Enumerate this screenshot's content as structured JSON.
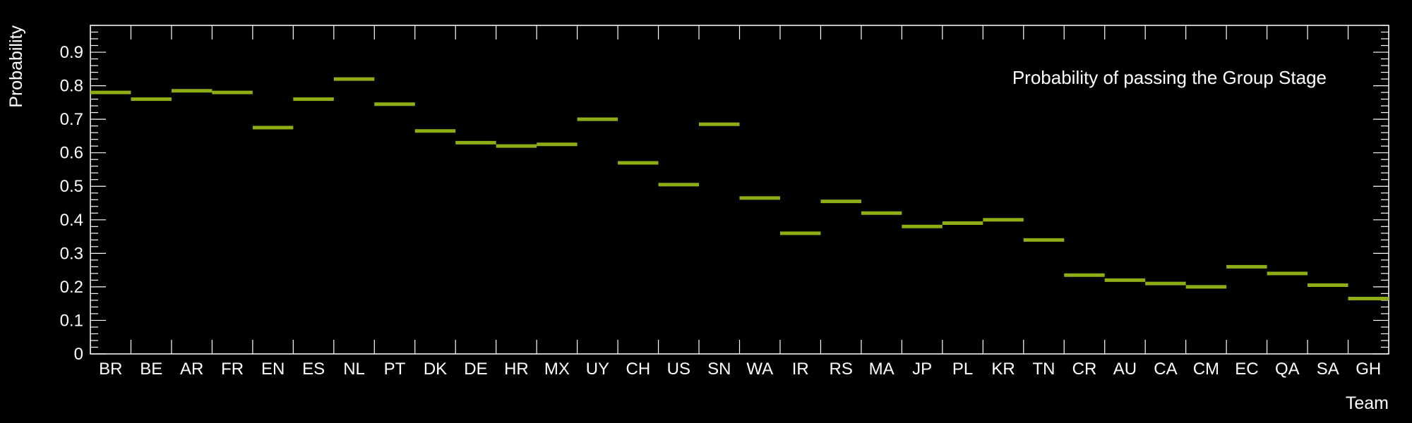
{
  "chart_data": {
    "type": "bar",
    "title": "",
    "annotation": "Probability of passing the Group Stage",
    "xlabel": "Team",
    "ylabel": "Probability",
    "ylim": [
      0,
      0.98
    ],
    "yticks": [
      "0",
      "0.1",
      "0.2",
      "0.3",
      "0.4",
      "0.5",
      "0.6",
      "0.7",
      "0.8",
      "0.9"
    ],
    "grid": false,
    "style": "histogram-step-markers",
    "colors": {
      "background": "#000000",
      "axes": "#ffffff",
      "text": "#ffffff",
      "marker": "#8fad15"
    },
    "categories": [
      "BR",
      "BE",
      "AR",
      "FR",
      "EN",
      "ES",
      "NL",
      "PT",
      "DK",
      "DE",
      "HR",
      "MX",
      "UY",
      "CH",
      "US",
      "SN",
      "WA",
      "IR",
      "RS",
      "MA",
      "JP",
      "PL",
      "KR",
      "TN",
      "CR",
      "AU",
      "CA",
      "CM",
      "EC",
      "QA",
      "SA",
      "GH"
    ],
    "values": [
      0.78,
      0.76,
      0.785,
      0.78,
      0.675,
      0.76,
      0.82,
      0.745,
      0.665,
      0.63,
      0.62,
      0.625,
      0.7,
      0.57,
      0.505,
      0.685,
      0.465,
      0.36,
      0.455,
      0.42,
      0.38,
      0.39,
      0.4,
      0.34,
      0.235,
      0.22,
      0.21,
      0.2,
      0.26,
      0.24,
      0.205,
      0.165
    ]
  }
}
